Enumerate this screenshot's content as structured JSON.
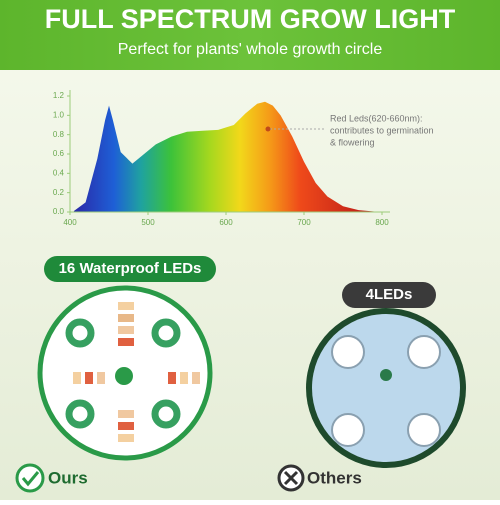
{
  "header": {
    "title": "FULL SPECTRUM GROW LIGHT",
    "subtitle": "Perfect for plants' whole growth circle"
  },
  "chart_data": {
    "type": "area",
    "x": [
      405,
      420,
      435,
      445,
      450,
      455,
      465,
      480,
      495,
      510,
      530,
      550,
      570,
      590,
      610,
      625,
      640,
      650,
      660,
      670,
      685,
      700,
      715,
      730,
      750,
      770,
      790
    ],
    "values": [
      0.01,
      0.1,
      0.55,
      0.95,
      1.1,
      0.95,
      0.62,
      0.5,
      0.6,
      0.7,
      0.78,
      0.83,
      0.84,
      0.85,
      0.9,
      1.02,
      1.12,
      1.14,
      1.1,
      1.0,
      0.78,
      0.52,
      0.3,
      0.16,
      0.06,
      0.02,
      0.005
    ],
    "xlim": [
      400,
      800
    ],
    "ylim": [
      0,
      1.2
    ],
    "xticks": [
      400,
      500,
      600,
      700,
      800
    ],
    "yticks": [
      {
        "value": 0,
        "label": "0.0"
      },
      0.2,
      0.4,
      0.6,
      0.8,
      {
        "value": 1,
        "label": "1.0"
      },
      1.2
    ],
    "annotation": [
      "Red Leds(620-660nm):",
      "contributes to germination",
      "& flowering"
    ]
  },
  "comparison": {
    "ours_badge": "16 Waterproof LEDs",
    "ours_label": "Ours",
    "others_badge": "4LEDs",
    "others_label": "Others"
  }
}
